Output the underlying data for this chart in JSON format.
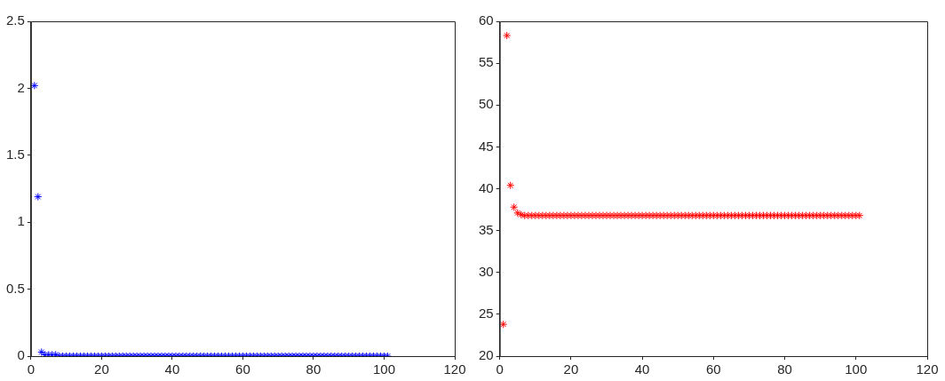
{
  "chart_data": [
    {
      "type": "scatter",
      "marker": "cross",
      "grid": false,
      "legend": false,
      "xlim": [
        0,
        120
      ],
      "xticks": [
        0,
        20,
        40,
        60,
        80,
        100,
        120
      ],
      "ylim": [
        0,
        2.5
      ],
      "yticks": [
        0,
        0.5,
        1,
        1.5,
        2,
        2.5
      ],
      "x": [
        1,
        2,
        3,
        4,
        5,
        6,
        7,
        8,
        9,
        10,
        11,
        12,
        13,
        14,
        15,
        16,
        17,
        18,
        19,
        20,
        21,
        22,
        23,
        24,
        25,
        26,
        27,
        28,
        29,
        30,
        31,
        32,
        33,
        34,
        35,
        36,
        37,
        38,
        39,
        40,
        41,
        42,
        43,
        44,
        45,
        46,
        47,
        48,
        49,
        50,
        51,
        52,
        53,
        54,
        55,
        56,
        57,
        58,
        59,
        60,
        61,
        62,
        63,
        64,
        65,
        66,
        67,
        68,
        69,
        70,
        71,
        72,
        73,
        74,
        75,
        76,
        77,
        78,
        79,
        80,
        81,
        82,
        83,
        84,
        85,
        86,
        87,
        88,
        89,
        90,
        91,
        92,
        93,
        94,
        95,
        96,
        97,
        98,
        99,
        100,
        101
      ],
      "series": [
        {
          "color": "#0000ff",
          "values": [
            2.02,
            1.19,
            0.03,
            0.01,
            0.01,
            0.01,
            0.01,
            0,
            0,
            0,
            0,
            0,
            0,
            0,
            0,
            0,
            0,
            0,
            0,
            0,
            0,
            0,
            0,
            0,
            0,
            0,
            0,
            0,
            0,
            0,
            0,
            0,
            0,
            0,
            0,
            0,
            0,
            0,
            0,
            0,
            0,
            0,
            0,
            0,
            0,
            0,
            0,
            0,
            0,
            0,
            0,
            0,
            0,
            0,
            0,
            0,
            0,
            0,
            0,
            0,
            0,
            0,
            0,
            0,
            0,
            0,
            0,
            0,
            0,
            0,
            0,
            0,
            0,
            0,
            0,
            0,
            0,
            0,
            0,
            0,
            0,
            0,
            0,
            0,
            0,
            0,
            0,
            0,
            0,
            0,
            0,
            0,
            0,
            0,
            0,
            0,
            0,
            0,
            0,
            0,
            0
          ]
        }
      ]
    },
    {
      "type": "scatter",
      "marker": "cross",
      "grid": false,
      "legend": false,
      "xlim": [
        0,
        120
      ],
      "xticks": [
        0,
        20,
        40,
        60,
        80,
        100,
        120
      ],
      "ylim": [
        20,
        60
      ],
      "yticks": [
        20,
        25,
        30,
        35,
        40,
        45,
        50,
        55,
        60
      ],
      "x": [
        1,
        2,
        3,
        4,
        5,
        6,
        7,
        8,
        9,
        10,
        11,
        12,
        13,
        14,
        15,
        16,
        17,
        18,
        19,
        20,
        21,
        22,
        23,
        24,
        25,
        26,
        27,
        28,
        29,
        30,
        31,
        32,
        33,
        34,
        35,
        36,
        37,
        38,
        39,
        40,
        41,
        42,
        43,
        44,
        45,
        46,
        47,
        48,
        49,
        50,
        51,
        52,
        53,
        54,
        55,
        56,
        57,
        58,
        59,
        60,
        61,
        62,
        63,
        64,
        65,
        66,
        67,
        68,
        69,
        70,
        71,
        72,
        73,
        74,
        75,
        76,
        77,
        78,
        79,
        80,
        81,
        82,
        83,
        84,
        85,
        86,
        87,
        88,
        89,
        90,
        91,
        92,
        93,
        94,
        95,
        96,
        97,
        98,
        99,
        100,
        101
      ],
      "series": [
        {
          "color": "#ff0000",
          "values": [
            23.8,
            58.3,
            40.4,
            37.8,
            37.1,
            36.9,
            36.8,
            36.8,
            36.8,
            36.8,
            36.8,
            36.8,
            36.8,
            36.8,
            36.8,
            36.8,
            36.8,
            36.8,
            36.8,
            36.8,
            36.8,
            36.8,
            36.8,
            36.8,
            36.8,
            36.8,
            36.8,
            36.8,
            36.8,
            36.8,
            36.8,
            36.8,
            36.8,
            36.8,
            36.8,
            36.8,
            36.8,
            36.8,
            36.8,
            36.8,
            36.8,
            36.8,
            36.8,
            36.8,
            36.8,
            36.8,
            36.8,
            36.8,
            36.8,
            36.8,
            36.8,
            36.8,
            36.8,
            36.8,
            36.8,
            36.8,
            36.8,
            36.8,
            36.8,
            36.8,
            36.8,
            36.8,
            36.8,
            36.8,
            36.8,
            36.8,
            36.8,
            36.8,
            36.8,
            36.8,
            36.8,
            36.8,
            36.8,
            36.8,
            36.8,
            36.8,
            36.8,
            36.8,
            36.8,
            36.8,
            36.8,
            36.8,
            36.8,
            36.8,
            36.8,
            36.8,
            36.8,
            36.8,
            36.8,
            36.8,
            36.8,
            36.8,
            36.8,
            36.8,
            36.8,
            36.8,
            36.8,
            36.8,
            36.8,
            36.8,
            36.8
          ]
        }
      ]
    }
  ]
}
